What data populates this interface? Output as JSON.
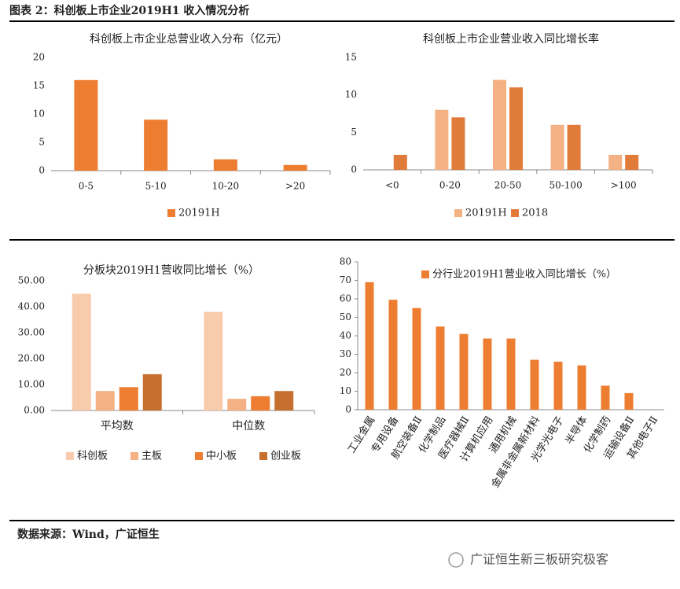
{
  "header": {
    "title": "图表 2：科创板上市企业2019H1 收入情况分析"
  },
  "chart_data": [
    {
      "type": "bar",
      "title": "科创板上市企业总营业收入分布（亿元）",
      "categories": [
        "0-5",
        "5-10",
        "10-20",
        ">20"
      ],
      "series": [
        {
          "name": "20191H",
          "color": "#ED7D31",
          "values": [
            16,
            9,
            2,
            1
          ]
        }
      ],
      "ylim": [
        0,
        20
      ],
      "yticks": [
        0,
        5,
        10,
        15,
        20
      ],
      "legend": "bottom"
    },
    {
      "type": "bar",
      "title": "科创板上市企业营业收入同比增长率",
      "categories": [
        "<0",
        "0-20",
        "20-50",
        "50-100",
        ">100"
      ],
      "series": [
        {
          "name": "20191H",
          "color": "#F4B183",
          "values": [
            0,
            8,
            12,
            6,
            2
          ]
        },
        {
          "name": "2018",
          "color": "#E07B39",
          "values": [
            2,
            7,
            11,
            6,
            2
          ]
        }
      ],
      "ylim": [
        0,
        15
      ],
      "yticks": [
        0,
        5,
        10,
        15
      ],
      "legend": "bottom"
    },
    {
      "type": "bar",
      "title": "分板块2019H1营收同比增长（%）",
      "categories": [
        "平均数",
        "中位数"
      ],
      "series": [
        {
          "name": "科创板",
          "color": "#F8CBAD",
          "values": [
            45,
            38
          ]
        },
        {
          "name": "主板",
          "color": "#F4B183",
          "values": [
            7.5,
            4.5
          ]
        },
        {
          "name": "中小板",
          "color": "#ED7D31",
          "values": [
            9,
            5.5
          ]
        },
        {
          "name": "创业板",
          "color": "#C5702F",
          "values": [
            14,
            7.5
          ]
        }
      ],
      "ylim": [
        0,
        50
      ],
      "yticks": [
        {
          "value": 0,
          "label": "0.00"
        },
        {
          "value": 10,
          "label": "10.00"
        },
        {
          "value": 20,
          "label": "20.00"
        },
        {
          "value": 30,
          "label": "30.00"
        },
        {
          "value": 40,
          "label": "40.00"
        },
        {
          "value": 50,
          "label": "50.00"
        }
      ],
      "legend": "bottom"
    },
    {
      "type": "bar",
      "categories": [
        "工业金属",
        "专用设备",
        "航空装备Ⅱ",
        "化学制品",
        "医疗器械Ⅱ",
        "计算机应用",
        "通用机械",
        "金属非金属新材料",
        "光学光电子",
        "半导体",
        "化学制药",
        "运输设备Ⅱ",
        "其他电子Ⅱ"
      ],
      "series": [
        {
          "name": "分行业2019H1营业收入同比增长（%）",
          "color": "#ED7D31",
          "values": [
            69,
            59.5,
            55,
            45,
            41,
            38.5,
            38.5,
            27,
            26,
            24,
            13,
            9,
            0
          ]
        }
      ],
      "ylim": [
        0,
        80
      ],
      "yticks": [
        0,
        10,
        20,
        30,
        40,
        50,
        60,
        70,
        80
      ],
      "legend": "top left"
    }
  ],
  "footer": {
    "source": "数据来源：Wind，广证恒生",
    "watermark": "广证恒生新三板研究极客"
  }
}
